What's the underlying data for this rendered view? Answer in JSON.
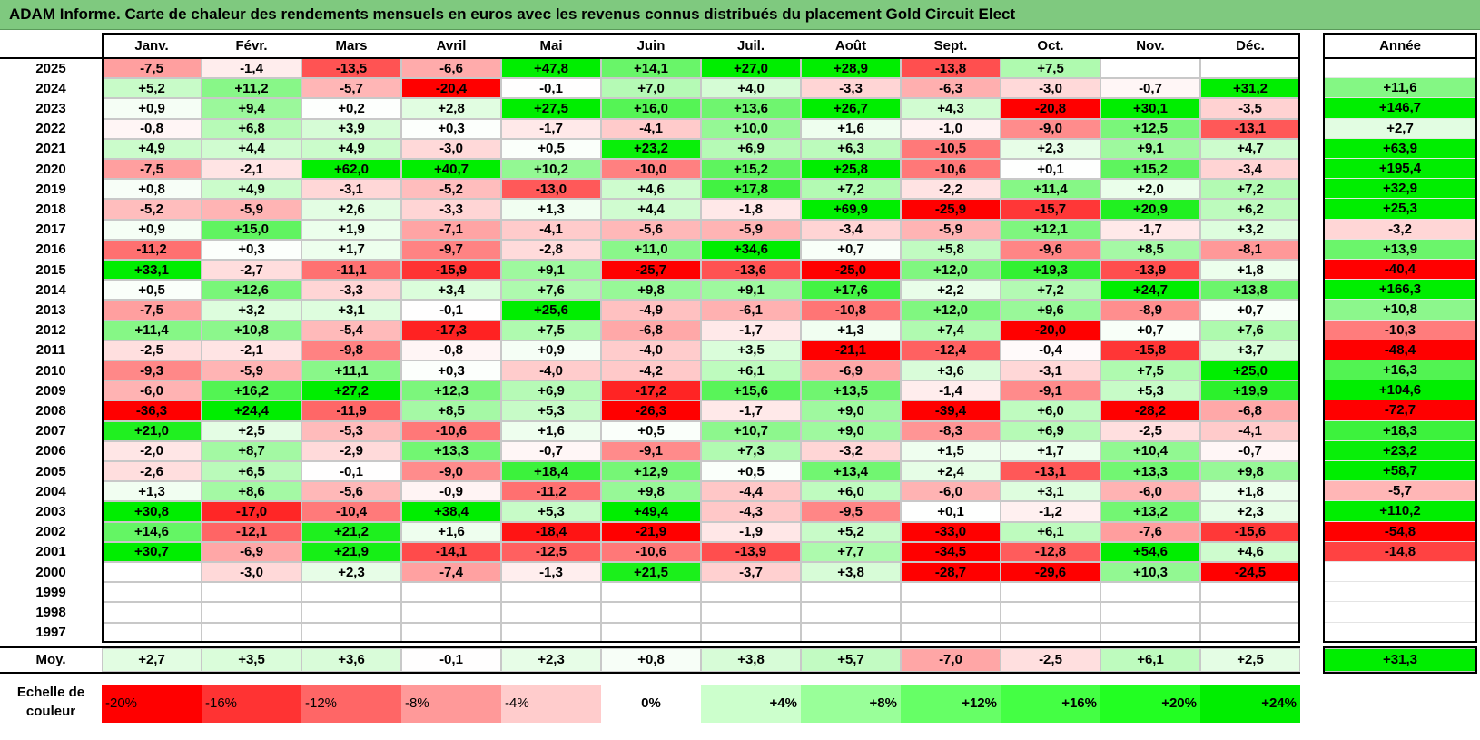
{
  "title": "ADAM Informe. Carte de chaleur des rendements mensuels en euros avec les revenus connus distribués du placement Gold Circuit Elect",
  "chart_data": {
    "type": "heatmap",
    "title": "ADAM Informe. Carte de chaleur des rendements mensuels en euros avec les revenus connus distribués du placement Gold Circuit Elect",
    "months": [
      "Janv.",
      "Févr.",
      "Mars",
      "Avril",
      "Mai",
      "Juin",
      "Juil.",
      "Août",
      "Sept.",
      "Oct.",
      "Nov.",
      "Déc."
    ],
    "year_header": "Année",
    "rows": [
      {
        "year": "2025",
        "values": [
          "-7,5",
          "-1,4",
          "-13,5",
          "-6,6",
          "+47,8",
          "+14,1",
          "+27,0",
          "+28,9",
          "-13,8",
          "+7,5",
          "",
          ""
        ],
        "annual": ""
      },
      {
        "year": "2024",
        "values": [
          "+5,2",
          "+11,2",
          "-5,7",
          "-20,4",
          "-0,1",
          "+7,0",
          "+4,0",
          "-3,3",
          "-6,3",
          "-3,0",
          "-0,7",
          "+31,2"
        ],
        "annual": "+11,6"
      },
      {
        "year": "2023",
        "values": [
          "+0,9",
          "+9,4",
          "+0,2",
          "+2,8",
          "+27,5",
          "+16,0",
          "+13,6",
          "+26,7",
          "+4,3",
          "-20,8",
          "+30,1",
          "-3,5"
        ],
        "annual": "+146,7"
      },
      {
        "year": "2022",
        "values": [
          "-0,8",
          "+6,8",
          "+3,9",
          "+0,3",
          "-1,7",
          "-4,1",
          "+10,0",
          "+1,6",
          "-1,0",
          "-9,0",
          "+12,5",
          "-13,1"
        ],
        "annual": "+2,7"
      },
      {
        "year": "2021",
        "values": [
          "+4,9",
          "+4,4",
          "+4,9",
          "-3,0",
          "+0,5",
          "+23,2",
          "+6,9",
          "+6,3",
          "-10,5",
          "+2,3",
          "+9,1",
          "+4,7"
        ],
        "annual": "+63,9"
      },
      {
        "year": "2020",
        "values": [
          "-7,5",
          "-2,1",
          "+62,0",
          "+40,7",
          "+10,2",
          "-10,0",
          "+15,2",
          "+25,8",
          "-10,6",
          "+0,1",
          "+15,2",
          "-3,4"
        ],
        "annual": "+195,4"
      },
      {
        "year": "2019",
        "values": [
          "+0,8",
          "+4,9",
          "-3,1",
          "-5,2",
          "-13,0",
          "+4,6",
          "+17,8",
          "+7,2",
          "-2,2",
          "+11,4",
          "+2,0",
          "+7,2"
        ],
        "annual": "+32,9"
      },
      {
        "year": "2018",
        "values": [
          "-5,2",
          "-5,9",
          "+2,6",
          "-3,3",
          "+1,3",
          "+4,4",
          "-1,8",
          "+69,9",
          "-25,9",
          "-15,7",
          "+20,9",
          "+6,2"
        ],
        "annual": "+25,3"
      },
      {
        "year": "2017",
        "values": [
          "+0,9",
          "+15,0",
          "+1,9",
          "-7,1",
          "-4,1",
          "-5,6",
          "-5,9",
          "-3,4",
          "-5,9",
          "+12,1",
          "-1,7",
          "+3,2"
        ],
        "annual": "-3,2"
      },
      {
        "year": "2016",
        "values": [
          "-11,2",
          "+0,3",
          "+1,7",
          "-9,7",
          "-2,8",
          "+11,0",
          "+34,6",
          "+0,7",
          "+5,8",
          "-9,6",
          "+8,5",
          "-8,1"
        ],
        "annual": "+13,9"
      },
      {
        "year": "2015",
        "values": [
          "+33,1",
          "-2,7",
          "-11,1",
          "-15,9",
          "+9,1",
          "-25,7",
          "-13,6",
          "-25,0",
          "+12,0",
          "+19,3",
          "-13,9",
          "+1,8"
        ],
        "annual": "-40,4"
      },
      {
        "year": "2014",
        "values": [
          "+0,5",
          "+12,6",
          "-3,3",
          "+3,4",
          "+7,6",
          "+9,8",
          "+9,1",
          "+17,6",
          "+2,2",
          "+7,2",
          "+24,7",
          "+13,8"
        ],
        "annual": "+166,3"
      },
      {
        "year": "2013",
        "values": [
          "-7,5",
          "+3,2",
          "+3,1",
          "-0,1",
          "+25,6",
          "-4,9",
          "-6,1",
          "-10,8",
          "+12,0",
          "+9,6",
          "-8,9",
          "+0,7"
        ],
        "annual": "+10,8"
      },
      {
        "year": "2012",
        "values": [
          "+11,4",
          "+10,8",
          "-5,4",
          "-17,3",
          "+7,5",
          "-6,8",
          "-1,7",
          "+1,3",
          "+7,4",
          "-20,0",
          "+0,7",
          "+7,6"
        ],
        "annual": "-10,3"
      },
      {
        "year": "2011",
        "values": [
          "-2,5",
          "-2,1",
          "-9,8",
          "-0,8",
          "+0,9",
          "-4,0",
          "+3,5",
          "-21,1",
          "-12,4",
          "-0,4",
          "-15,8",
          "+3,7"
        ],
        "annual": "-48,4"
      },
      {
        "year": "2010",
        "values": [
          "-9,3",
          "-5,9",
          "+11,1",
          "+0,3",
          "-4,0",
          "-4,2",
          "+6,1",
          "-6,9",
          "+3,6",
          "-3,1",
          "+7,5",
          "+25,0"
        ],
        "annual": "+16,3"
      },
      {
        "year": "2009",
        "values": [
          "-6,0",
          "+16,2",
          "+27,2",
          "+12,3",
          "+6,9",
          "-17,2",
          "+15,6",
          "+13,5",
          "-1,4",
          "-9,1",
          "+5,3",
          "+19,9"
        ],
        "annual": "+104,6"
      },
      {
        "year": "2008",
        "values": [
          "-36,3",
          "+24,4",
          "-11,9",
          "+8,5",
          "+5,3",
          "-26,3",
          "-1,7",
          "+9,0",
          "-39,4",
          "+6,0",
          "-28,2",
          "-6,8"
        ],
        "annual": "-72,7"
      },
      {
        "year": "2007",
        "values": [
          "+21,0",
          "+2,5",
          "-5,3",
          "-10,6",
          "+1,6",
          "+0,5",
          "+10,7",
          "+9,0",
          "-8,3",
          "+6,9",
          "-2,5",
          "-4,1"
        ],
        "annual": "+18,3"
      },
      {
        "year": "2006",
        "values": [
          "-2,0",
          "+8,7",
          "-2,9",
          "+13,3",
          "-0,7",
          "-9,1",
          "+7,3",
          "-3,2",
          "+1,5",
          "+1,7",
          "+10,4",
          "-0,7"
        ],
        "annual": "+23,2"
      },
      {
        "year": "2005",
        "values": [
          "-2,6",
          "+6,5",
          "-0,1",
          "-9,0",
          "+18,4",
          "+12,9",
          "+0,5",
          "+13,4",
          "+2,4",
          "-13,1",
          "+13,3",
          "+9,8"
        ],
        "annual": "+58,7"
      },
      {
        "year": "2004",
        "values": [
          "+1,3",
          "+8,6",
          "-5,6",
          "-0,9",
          "-11,2",
          "+9,8",
          "-4,4",
          "+6,0",
          "-6,0",
          "+3,1",
          "-6,0",
          "+1,8"
        ],
        "annual": "-5,7"
      },
      {
        "year": "2003",
        "values": [
          "+30,8",
          "-17,0",
          "-10,4",
          "+38,4",
          "+5,3",
          "+49,4",
          "-4,3",
          "-9,5",
          "+0,1",
          "-1,2",
          "+13,2",
          "+2,3"
        ],
        "annual": "+110,2"
      },
      {
        "year": "2002",
        "values": [
          "+14,6",
          "-12,1",
          "+21,2",
          "+1,6",
          "-18,4",
          "-21,9",
          "-1,9",
          "+5,2",
          "-33,0",
          "+6,1",
          "-7,6",
          "-15,6"
        ],
        "annual": "-54,8"
      },
      {
        "year": "2001",
        "values": [
          "+30,7",
          "-6,9",
          "+21,9",
          "-14,1",
          "-12,5",
          "-10,6",
          "-13,9",
          "+7,7",
          "-34,5",
          "-12,8",
          "+54,6",
          "+4,6"
        ],
        "annual": "-14,8"
      },
      {
        "year": "2000",
        "values": [
          "",
          "-3,0",
          "+2,3",
          "-7,4",
          "-1,3",
          "+21,5",
          "-3,7",
          "+3,8",
          "-28,7",
          "-29,6",
          "+10,3",
          "-24,5"
        ],
        "annual": ""
      },
      {
        "year": "1999",
        "values": [
          "",
          "",
          "",
          "",
          "",
          "",
          "",
          "",
          "",
          "",
          "",
          ""
        ],
        "annual": ""
      },
      {
        "year": "1998",
        "values": [
          "",
          "",
          "",
          "",
          "",
          "",
          "",
          "",
          "",
          "",
          "",
          ""
        ],
        "annual": ""
      },
      {
        "year": "1997",
        "values": [
          "",
          "",
          "",
          "",
          "",
          "",
          "",
          "",
          "",
          "",
          "",
          ""
        ],
        "annual": ""
      }
    ],
    "average": {
      "label": "Moy.",
      "values": [
        "+2,7",
        "+3,5",
        "+3,6",
        "-0,1",
        "+2,3",
        "+0,8",
        "+3,8",
        "+5,7",
        "-7,0",
        "-2,5",
        "+6,1",
        "+2,5"
      ],
      "annual": "+31,3"
    },
    "color_scale": {
      "label": "Echelle de couleur",
      "stops": [
        {
          "label": "-20%",
          "value": -20,
          "color": "#ff0000"
        },
        {
          "label": "-16%",
          "value": -16,
          "color": "#ff3333"
        },
        {
          "label": "-12%",
          "value": -12,
          "color": "#ff6666"
        },
        {
          "label": "-8%",
          "value": -8,
          "color": "#ff9999"
        },
        {
          "label": "-4%",
          "value": -4,
          "color": "#ffcccc"
        },
        {
          "label": "0%",
          "value": 0,
          "color": "#ffffff"
        },
        {
          "label": "+4%",
          "value": 4,
          "color": "#ccffcc"
        },
        {
          "label": "+8%",
          "value": 8,
          "color": "#99ff99"
        },
        {
          "label": "+12%",
          "value": 12,
          "color": "#66ff66"
        },
        {
          "label": "+16%",
          "value": 16,
          "color": "#44ff44"
        },
        {
          "label": "+20%",
          "value": 20,
          "color": "#22ff22"
        },
        {
          "label": "+24%",
          "value": 24,
          "color": "#00ee00"
        }
      ]
    }
  }
}
